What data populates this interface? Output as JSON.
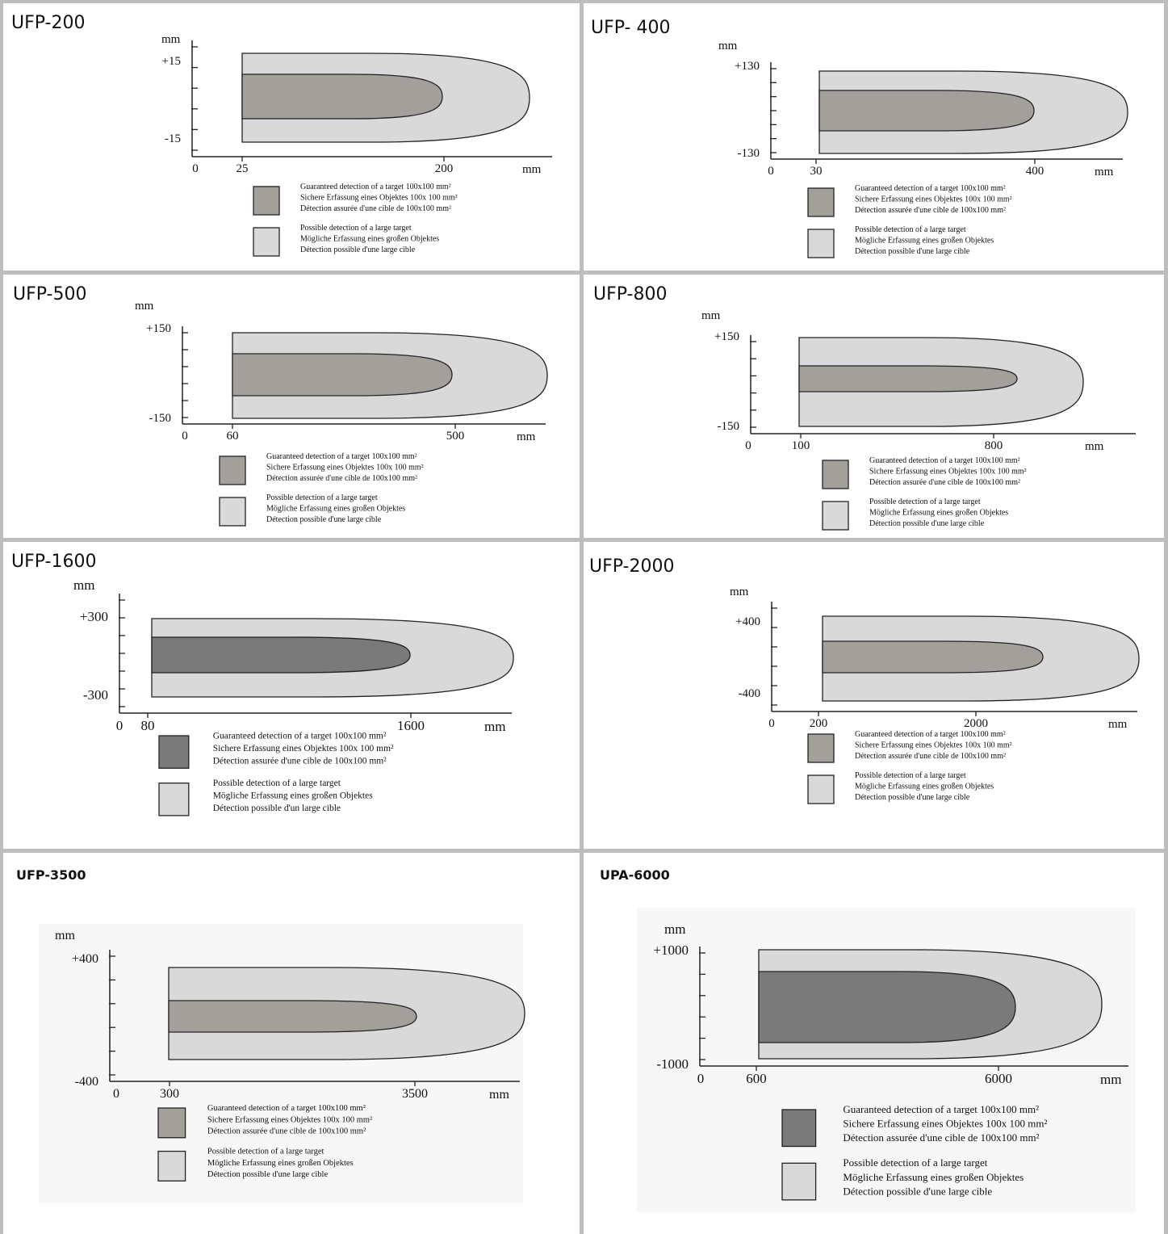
{
  "colors": {
    "grid_line": "#bdbdbd",
    "outer_zone": "#d9d9d9",
    "inner_zone_light": "#a3a09c",
    "inner_zone_dark": "#7a7a7a",
    "stroke": "#222222"
  },
  "legend_guaranteed": [
    "Guaranteed detection of a target 100x100 mm²",
    "Sichere Erfassung eines Objektes 100x 100 mm²",
    "Détection assurée d'une cible de 100x100 mm²"
  ],
  "legend_possible": [
    "Possible detection of a large target",
    "Mögliche Erfassung eines großen Objektes",
    "Détection possible d'une large cible"
  ],
  "legend_possible_alt_fr": "Détection possible d'un large cible",
  "unit": "mm",
  "panels": [
    {
      "title": "UFP-200",
      "y_top": "+15",
      "y_bottom": "-15",
      "x_ticks": [
        "0",
        "25",
        "200"
      ],
      "start_mm": 25,
      "guaranteed_end_mm": 200
    },
    {
      "title": "UFP- 400",
      "y_top": "+130",
      "y_bottom": "-130",
      "x_ticks": [
        "0",
        "30",
        "400"
      ],
      "start_mm": 30,
      "guaranteed_end_mm": 400
    },
    {
      "title": "UFP-500",
      "y_top": "+150",
      "y_bottom": "-150",
      "x_ticks": [
        "0",
        "60",
        "500"
      ],
      "start_mm": 60,
      "guaranteed_end_mm": 500
    },
    {
      "title": "UFP-800",
      "y_top": "+150",
      "y_bottom": "-150",
      "x_ticks": [
        "0",
        "100",
        "800"
      ],
      "start_mm": 100,
      "guaranteed_end_mm": 800
    },
    {
      "title": "UFP-1600",
      "y_top": "+300",
      "y_bottom": "-300",
      "x_ticks": [
        "0",
        "80",
        "1600"
      ],
      "start_mm": 80,
      "guaranteed_end_mm": 1600
    },
    {
      "title": "UFP-2000",
      "y_top": "+400",
      "y_bottom": "-400",
      "x_ticks": [
        "0",
        "200",
        "2000"
      ],
      "start_mm": 200,
      "guaranteed_end_mm": 2000
    },
    {
      "title": "UFP-3500",
      "y_top": "+400",
      "y_bottom": "-400",
      "x_ticks": [
        "0",
        "300",
        "3500"
      ],
      "start_mm": 300,
      "guaranteed_end_mm": 3500
    },
    {
      "title": "UPA-6000",
      "y_top": "+1000",
      "y_bottom": "-1000",
      "x_ticks": [
        "0",
        "600",
        "6000"
      ],
      "start_mm": 600,
      "guaranteed_end_mm": 6000
    }
  ]
}
